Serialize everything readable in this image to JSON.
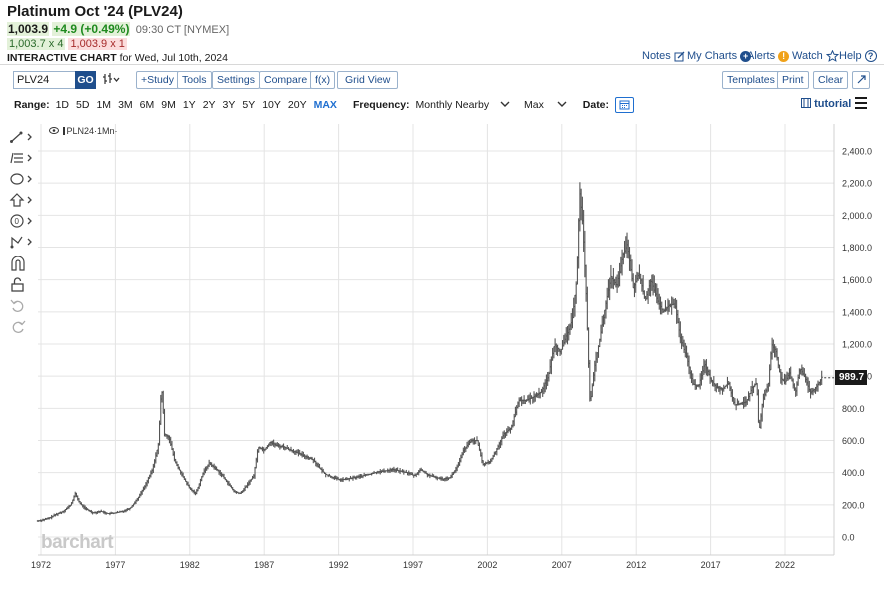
{
  "header": {
    "title": "Platinum Oct '24 (PLV24)",
    "last": "1,003.9",
    "change": "+4.9 (+0.49%)",
    "time": "09:30 CT [NYMEX]",
    "bid": "1,003.7 x 4",
    "ask": "1,003.9 x 1",
    "interactive_bold": "INTERACTIVE CHART",
    "interactive_rest": " for Wed, Jul 10th, 2024"
  },
  "top_links": {
    "notes": "Notes",
    "my_charts": "My Charts",
    "alerts": "Alerts",
    "watch": "Watch",
    "help": "Help"
  },
  "toolbar": {
    "symbol_value": "PLV24",
    "go": "GO",
    "study": "+Study",
    "tools": "Tools",
    "settings": "Settings",
    "compare": "Compare",
    "fx": "f(x)",
    "grid_view": "Grid View",
    "templates": "Templates",
    "print": "Print",
    "clear": "Clear"
  },
  "range_row": {
    "range_label": "Range:",
    "ranges": [
      "1D",
      "5D",
      "1M",
      "3M",
      "6M",
      "9M",
      "1Y",
      "2Y",
      "3Y",
      "5Y",
      "10Y",
      "20Y",
      "MAX"
    ],
    "active_range": "MAX",
    "frequency_label": "Frequency:",
    "frequency_value": "Monthly Nearby",
    "scale_value": "Max",
    "date_label": "Date:",
    "tutorial": "tutorial"
  },
  "chart_data": {
    "type": "bar",
    "style": "OHLC",
    "legend": "PLN24·1Mn·",
    "watermark": "barchart",
    "last_price_tag": "989.7",
    "x_tick_labels": [
      "1972",
      "1977",
      "1982",
      "1987",
      "1992",
      "1997",
      "2002",
      "2007",
      "2012",
      "2017",
      "2022"
    ],
    "y_tick_labels": [
      "0.0",
      "200.0",
      "400.0",
      "600.0",
      "800.0",
      "1,000.0",
      "1,200.0",
      "1,400.0",
      "1,600.0",
      "1,800.0",
      "2,000.0",
      "2,200.0",
      "2,400.0"
    ],
    "ylim": [
      -100,
      2550
    ],
    "xlim": [
      1971.7,
      2024.7
    ],
    "grid": true,
    "series": [
      {
        "points": [
          [
            1971.8,
            100
          ],
          [
            1972.5,
            115
          ],
          [
            1973.0,
            140
          ],
          [
            1973.5,
            160
          ],
          [
            1974.0,
            200
          ],
          [
            1974.3,
            270
          ],
          [
            1974.6,
            210
          ],
          [
            1975.0,
            175
          ],
          [
            1975.5,
            150
          ],
          [
            1976.0,
            160
          ],
          [
            1976.5,
            145
          ],
          [
            1977.0,
            150
          ],
          [
            1977.5,
            160
          ],
          [
            1978.0,
            180
          ],
          [
            1978.5,
            240
          ],
          [
            1979.0,
            320
          ],
          [
            1979.5,
            420
          ],
          [
            1979.9,
            580
          ],
          [
            1980.1,
            950
          ],
          [
            1980.3,
            640
          ],
          [
            1980.6,
            620
          ],
          [
            1981.0,
            470
          ],
          [
            1981.5,
            380
          ],
          [
            1982.0,
            300
          ],
          [
            1982.4,
            270
          ],
          [
            1982.9,
            400
          ],
          [
            1983.3,
            460
          ],
          [
            1983.8,
            420
          ],
          [
            1984.2,
            380
          ],
          [
            1984.6,
            330
          ],
          [
            1985.0,
            280
          ],
          [
            1985.4,
            270
          ],
          [
            1985.9,
            330
          ],
          [
            1986.3,
            380
          ],
          [
            1986.6,
            560
          ],
          [
            1987.0,
            540
          ],
          [
            1987.4,
            590
          ],
          [
            1987.8,
            570
          ],
          [
            1988.3,
            560
          ],
          [
            1988.8,
            540
          ],
          [
            1989.3,
            520
          ],
          [
            1989.8,
            500
          ],
          [
            1990.3,
            480
          ],
          [
            1990.7,
            430
          ],
          [
            1991.1,
            390
          ],
          [
            1991.6,
            370
          ],
          [
            1992.1,
            355
          ],
          [
            1992.6,
            360
          ],
          [
            1993.1,
            370
          ],
          [
            1993.6,
            380
          ],
          [
            1994.1,
            390
          ],
          [
            1994.6,
            405
          ],
          [
            1995.1,
            410
          ],
          [
            1995.6,
            420
          ],
          [
            1996.1,
            410
          ],
          [
            1996.6,
            400
          ],
          [
            1997.1,
            380
          ],
          [
            1997.5,
            420
          ],
          [
            1998.0,
            385
          ],
          [
            1998.5,
            370
          ],
          [
            1999.0,
            360
          ],
          [
            1999.5,
            370
          ],
          [
            2000.0,
            440
          ],
          [
            2000.4,
            540
          ],
          [
            2000.9,
            600
          ],
          [
            2001.3,
            600
          ],
          [
            2001.7,
            450
          ],
          [
            2002.2,
            470
          ],
          [
            2002.6,
            540
          ],
          [
            2003.1,
            640
          ],
          [
            2003.6,
            680
          ],
          [
            2004.1,
            850
          ],
          [
            2004.6,
            850
          ],
          [
            2005.1,
            870
          ],
          [
            2005.6,
            900
          ],
          [
            2006.1,
            1000
          ],
          [
            2006.5,
            1200
          ],
          [
            2006.9,
            1150
          ],
          [
            2007.3,
            1250
          ],
          [
            2007.7,
            1350
          ],
          [
            2008.0,
            1600
          ],
          [
            2008.2,
            2150
          ],
          [
            2008.4,
            1950
          ],
          [
            2008.6,
            1600
          ],
          [
            2008.9,
            820
          ],
          [
            2009.2,
            1060
          ],
          [
            2009.5,
            1200
          ],
          [
            2009.9,
            1420
          ],
          [
            2010.3,
            1620
          ],
          [
            2010.7,
            1560
          ],
          [
            2011.1,
            1750
          ],
          [
            2011.4,
            1820
          ],
          [
            2011.8,
            1550
          ],
          [
            2012.2,
            1640
          ],
          [
            2012.6,
            1470
          ],
          [
            2013.0,
            1600
          ],
          [
            2013.4,
            1480
          ],
          [
            2013.8,
            1400
          ],
          [
            2014.2,
            1440
          ],
          [
            2014.6,
            1450
          ],
          [
            2015.0,
            1220
          ],
          [
            2015.4,
            1120
          ],
          [
            2015.8,
            950
          ],
          [
            2016.2,
            940
          ],
          [
            2016.6,
            1080
          ],
          [
            2017.0,
            980
          ],
          [
            2017.4,
            930
          ],
          [
            2017.8,
            920
          ],
          [
            2018.2,
            960
          ],
          [
            2018.6,
            820
          ],
          [
            2019.0,
            830
          ],
          [
            2019.4,
            840
          ],
          [
            2019.8,
            930
          ],
          [
            2020.1,
            960
          ],
          [
            2020.25,
            640
          ],
          [
            2020.5,
            850
          ],
          [
            2020.9,
            960
          ],
          [
            2021.1,
            1200
          ],
          [
            2021.4,
            1150
          ],
          [
            2021.7,
            990
          ],
          [
            2022.0,
            960
          ],
          [
            2022.3,
            1020
          ],
          [
            2022.7,
            900
          ],
          [
            2023.0,
            1050
          ],
          [
            2023.3,
            1000
          ],
          [
            2023.7,
            900
          ],
          [
            2024.0,
            920
          ],
          [
            2024.3,
            960
          ],
          [
            2024.5,
            1000
          ]
        ]
      }
    ]
  }
}
